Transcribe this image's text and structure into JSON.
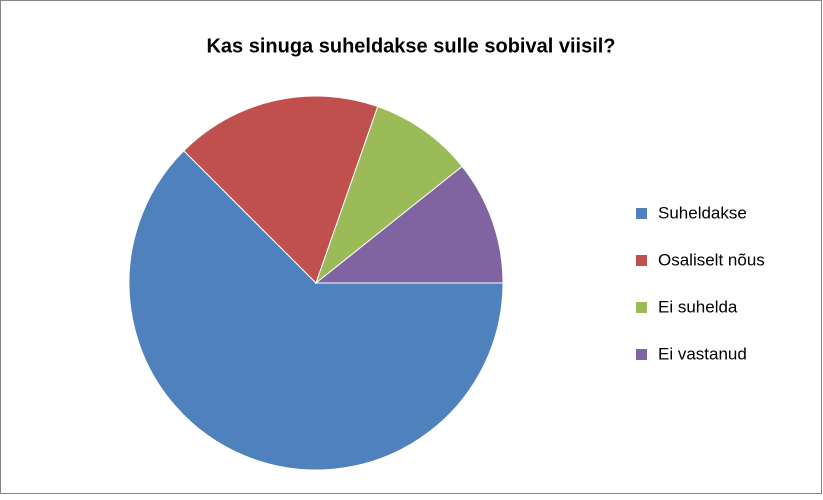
{
  "chart_data": {
    "type": "pie",
    "title": "Kas sinuga suheldakse sulle sobival viisil?",
    "categories": [
      "Suheldakse",
      "Osaliselt nõus",
      "Ei suhelda",
      "Ei vastanud"
    ],
    "values": [
      35,
      10,
      5,
      6
    ],
    "colors": [
      "#4f81bd",
      "#c0504d",
      "#9bbb59",
      "#8064a2"
    ],
    "start_angle": 90,
    "legend": "right"
  }
}
